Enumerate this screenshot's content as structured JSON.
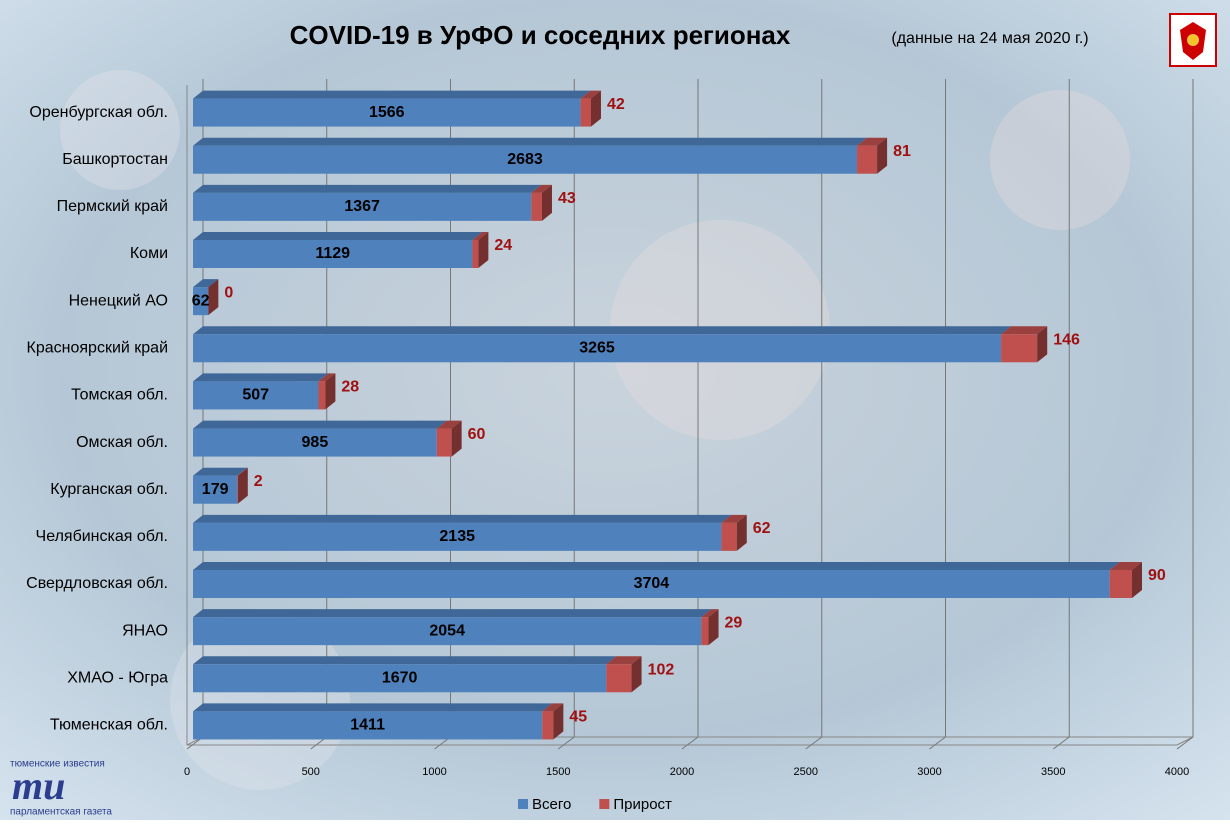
{
  "chart_data": {
    "type": "bar3d",
    "title": "COVID-19 в УрФО и соседних регионах",
    "subtitle": "(данные  на 24 мая 2020 г.)",
    "categories": [
      "Оренбургская обл.",
      "Башкортостан",
      "Пермский край",
      "Коми",
      "Ненецкий АО",
      "Красноярский край",
      "Томская обл.",
      "Омская обл.",
      "Курганская обл.",
      "Челябинская обл.",
      "Свердловская обл.",
      "ЯНАО",
      "ХМАО - Югра",
      "Тюменская обл."
    ],
    "series": [
      {
        "name": "Всего",
        "color": "#4f81bd",
        "values": [
          1566,
          2683,
          1367,
          1129,
          62,
          3265,
          507,
          985,
          179,
          2135,
          3704,
          2054,
          1670,
          1411
        ]
      },
      {
        "name": "Прирост",
        "color": "#c0504d",
        "values": [
          42,
          81,
          43,
          24,
          0,
          146,
          28,
          60,
          2,
          62,
          90,
          29,
          102,
          45
        ]
      }
    ],
    "xlim": [
      0,
      4000
    ],
    "xticks": [
      0,
      500,
      1000,
      1500,
      2000,
      2500,
      3000,
      3500,
      4000
    ],
    "grid": true,
    "stacked": true
  },
  "logo": {
    "top": "тюменские известия",
    "mark": "ти",
    "bottom": "парламентская газета"
  }
}
